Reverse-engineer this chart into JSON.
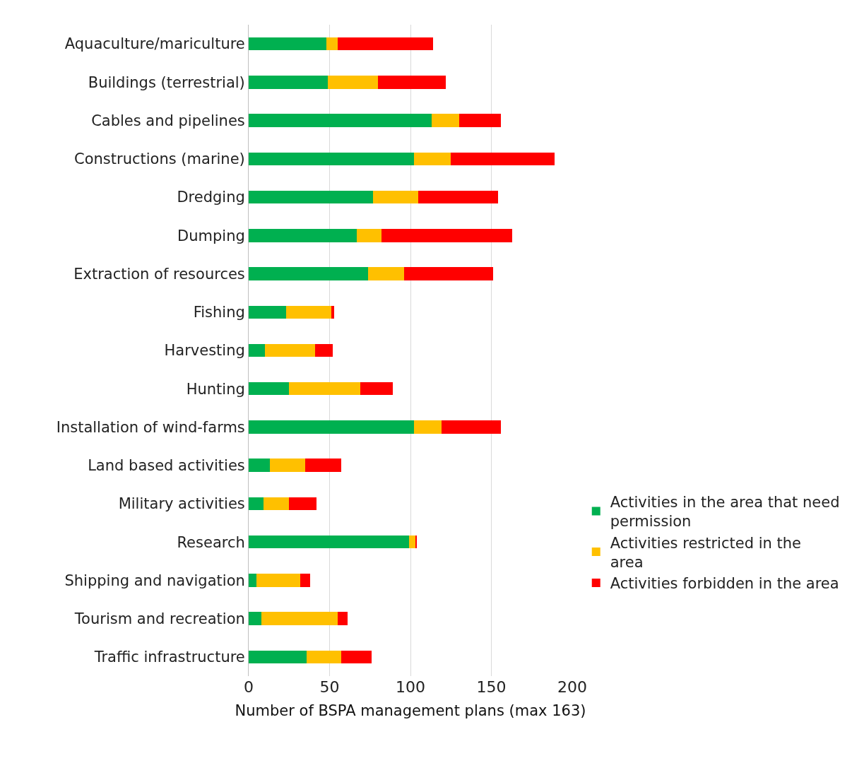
{
  "chart_data": {
    "type": "bar",
    "orientation": "horizontal",
    "stacked": true,
    "categories": [
      "Aquaculture/mariculture",
      "Buildings (terrestrial)",
      "Cables and pipelines",
      "Constructions (marine)",
      "Dredging",
      "Dumping",
      "Extraction of resources",
      "Fishing",
      "Harvesting",
      "Hunting",
      "Installation of wind-farms",
      "Land based activities",
      "Military activities",
      "Research",
      "Shipping and navigation",
      "Tourism and recreation",
      "Traffic infrastructure"
    ],
    "series": [
      {
        "name": "Activities in the area that need permission",
        "color": "#00b050",
        "values": [
          48,
          49,
          113,
          102,
          77,
          67,
          74,
          23,
          10,
          25,
          102,
          13,
          9,
          99,
          5,
          8,
          36
        ]
      },
      {
        "name": "Activities restricted in the area",
        "color": "#ffc000",
        "values": [
          7,
          31,
          17,
          23,
          28,
          15,
          22,
          28,
          31,
          44,
          17,
          22,
          16,
          4,
          27,
          47,
          21
        ]
      },
      {
        "name": "Activities forbidden in the area",
        "color": "#ff0000",
        "values": [
          59,
          42,
          26,
          64,
          49,
          81,
          55,
          2,
          11,
          20,
          37,
          22,
          17,
          1,
          6,
          6,
          19
        ]
      }
    ],
    "xlabel": "Number of BSPA management plans (max 163)",
    "xlim": [
      0,
      200
    ],
    "xticks": [
      0,
      50,
      100,
      150,
      200
    ],
    "grid": "x",
    "legend": "right"
  }
}
